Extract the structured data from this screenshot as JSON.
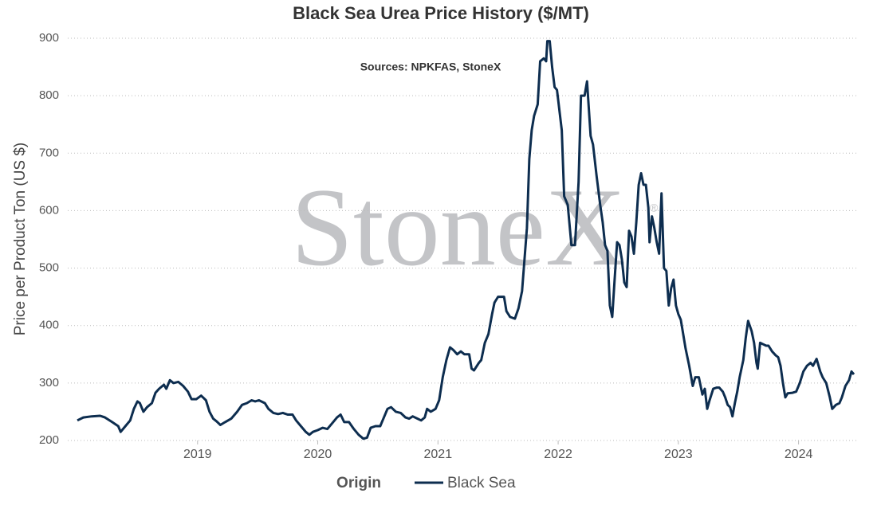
{
  "chart_data": {
    "type": "line",
    "title": "Black Sea Urea Price History ($/MT)",
    "subtitle": "Sources: NPKFAS, StoneX",
    "watermark": "StoneX",
    "watermark_mark": "®",
    "y_label": "Price per Product Ton (US $)",
    "legend_title": "Origin",
    "grid": true,
    "xlim": [
      2018,
      2024.5
    ],
    "xticks": [
      2019,
      2020,
      2021,
      2022,
      2023,
      2024
    ],
    "ylim": [
      200,
      900
    ],
    "yticks": [
      200,
      300,
      400,
      500,
      600,
      700,
      800,
      900
    ],
    "x": [
      2018.0,
      2018.05,
      2018.12,
      2018.19,
      2018.23,
      2018.29,
      2018.34,
      2018.36,
      2018.4,
      2018.44,
      2018.47,
      2018.5,
      2018.52,
      2018.55,
      2018.58,
      2018.62,
      2018.65,
      2018.68,
      2018.72,
      2018.74,
      2018.77,
      2018.8,
      2018.84,
      2018.88,
      2018.92,
      2018.95,
      2018.99,
      2019.03,
      2019.07,
      2019.1,
      2019.13,
      2019.16,
      2019.19,
      2019.23,
      2019.28,
      2019.33,
      2019.37,
      2019.41,
      2019.45,
      2019.48,
      2019.51,
      2019.56,
      2019.59,
      2019.63,
      2019.67,
      2019.71,
      2019.75,
      2019.79,
      2019.82,
      2019.86,
      2019.9,
      2019.93,
      2019.96,
      2020.0,
      2020.04,
      2020.08,
      2020.12,
      2020.16,
      2020.19,
      2020.22,
      2020.26,
      2020.3,
      2020.34,
      2020.38,
      2020.41,
      2020.44,
      2020.48,
      2020.52,
      2020.55,
      2020.58,
      2020.61,
      2020.65,
      2020.69,
      2020.73,
      2020.76,
      2020.79,
      2020.83,
      2020.86,
      2020.89,
      2020.91,
      2020.94,
      2020.98,
      2021.01,
      2021.04,
      2021.07,
      2021.1,
      2021.13,
      2021.16,
      2021.19,
      2021.22,
      2021.26,
      2021.28,
      2021.3,
      2021.34,
      2021.36,
      2021.39,
      2021.42,
      2021.45,
      2021.47,
      2021.5,
      2021.55,
      2021.57,
      2021.6,
      2021.64,
      2021.67,
      2021.7,
      2021.74,
      2021.76,
      2021.78,
      2021.8,
      2021.83,
      2021.85,
      2021.88,
      2021.9,
      2021.91,
      2021.93,
      2021.95,
      2021.97,
      2021.99,
      2022.03,
      2022.05,
      2022.08,
      2022.11,
      2022.14,
      2022.17,
      2022.19,
      2022.22,
      2022.24,
      2022.27,
      2022.29,
      2022.32,
      2022.35,
      2022.37,
      2022.39,
      2022.41,
      2022.43,
      2022.45,
      2022.47,
      2022.49,
      2022.51,
      2022.53,
      2022.55,
      2022.57,
      2022.59,
      2022.61,
      2022.63,
      2022.65,
      2022.67,
      2022.69,
      2022.71,
      2022.73,
      2022.75,
      2022.76,
      2022.78,
      2022.8,
      2022.82,
      2022.84,
      2022.86,
      2022.88,
      2022.9,
      2022.92,
      2022.94,
      2022.96,
      2022.98,
      2023.0,
      2023.02,
      2023.04,
      2023.06,
      2023.09,
      2023.12,
      2023.14,
      2023.17,
      2023.2,
      2023.22,
      2023.24,
      2023.26,
      2023.29,
      2023.32,
      2023.34,
      2023.37,
      2023.39,
      2023.41,
      2023.43,
      2023.45,
      2023.47,
      2023.49,
      2023.51,
      2023.54,
      2023.56,
      2023.58,
      2023.61,
      2023.63,
      2023.65,
      2023.66,
      2023.68,
      2023.7,
      2023.73,
      2023.75,
      2023.78,
      2023.81,
      2023.83,
      2023.85,
      2023.87,
      2023.89,
      2023.91,
      2023.95,
      2023.98,
      2024.01,
      2024.04,
      2024.07,
      2024.1,
      2024.12,
      2024.15,
      2024.18,
      2024.2,
      2024.23,
      2024.26,
      2024.28,
      2024.31,
      2024.34,
      2024.36,
      2024.39,
      2024.42,
      2024.44,
      2024.46
    ],
    "series": [
      {
        "name": "Black Sea",
        "color": "#0d2d4f",
        "values": [
          235,
          240,
          242,
          243,
          240,
          232,
          225,
          215,
          225,
          235,
          255,
          268,
          265,
          250,
          258,
          265,
          283,
          290,
          297,
          290,
          305,
          300,
          302,
          295,
          285,
          272,
          272,
          278,
          270,
          250,
          238,
          233,
          227,
          232,
          238,
          250,
          262,
          265,
          270,
          268,
          270,
          265,
          255,
          248,
          246,
          248,
          245,
          245,
          235,
          225,
          215,
          210,
          215,
          218,
          222,
          220,
          230,
          240,
          245,
          232,
          232,
          220,
          210,
          203,
          205,
          222,
          225,
          225,
          240,
          255,
          258,
          250,
          248,
          240,
          238,
          242,
          238,
          235,
          240,
          255,
          250,
          255,
          270,
          310,
          340,
          362,
          357,
          350,
          355,
          350,
          350,
          325,
          322,
          335,
          340,
          370,
          385,
          420,
          440,
          450,
          450,
          425,
          415,
          412,
          430,
          460,
          570,
          690,
          740,
          765,
          785,
          860,
          865,
          860,
          895,
          895,
          850,
          815,
          810,
          740,
          625,
          610,
          540,
          540,
          650,
          800,
          800,
          825,
          730,
          715,
          660,
          610,
          580,
          540,
          530,
          435,
          415,
          480,
          545,
          540,
          515,
          475,
          467,
          565,
          555,
          525,
          580,
          645,
          665,
          645,
          645,
          605,
          545,
          590,
          570,
          545,
          525,
          630,
          500,
          495,
          435,
          465,
          480,
          435,
          420,
          410,
          385,
          360,
          330,
          295,
          310,
          310,
          280,
          290,
          255,
          270,
          290,
          292,
          292,
          285,
          275,
          262,
          258,
          242,
          265,
          285,
          310,
          340,
          378,
          408,
          390,
          370,
          335,
          325,
          370,
          368,
          365,
          365,
          355,
          348,
          345,
          330,
          300,
          275,
          282,
          283,
          285,
          300,
          320,
          330,
          335,
          330,
          342,
          320,
          310,
          300,
          275,
          255,
          262,
          265,
          275,
          295,
          305,
          320,
          315
        ]
      }
    ]
  }
}
